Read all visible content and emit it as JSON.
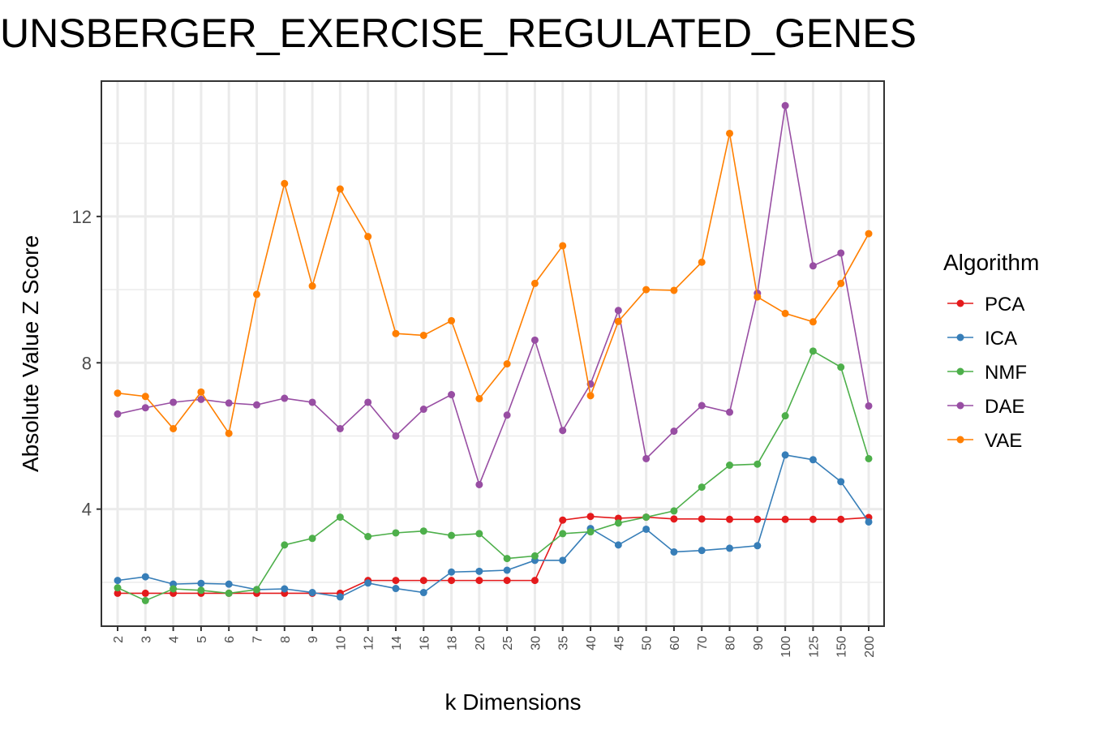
{
  "chart_data": {
    "type": "line",
    "title": "UNSBERGER_EXERCISE_REGULATED_GENES",
    "xlabel": "k Dimensions",
    "ylabel": "Absolute Value Z Score",
    "categories": [
      "2",
      "3",
      "4",
      "5",
      "6",
      "7",
      "8",
      "9",
      "10",
      "12",
      "14",
      "16",
      "18",
      "20",
      "25",
      "30",
      "35",
      "40",
      "45",
      "50",
      "60",
      "70",
      "80",
      "90",
      "100",
      "125",
      "150",
      "200"
    ],
    "ylim": [
      0.8,
      15.7
    ],
    "yticks": [
      4,
      8,
      12
    ],
    "grid": true,
    "legend": {
      "title": "Algorithm",
      "position": "right"
    },
    "series": [
      {
        "name": "PCA",
        "color": "#e41a1c",
        "values": [
          1.7,
          1.7,
          1.7,
          1.7,
          1.7,
          1.7,
          1.7,
          1.7,
          1.7,
          2.05,
          2.05,
          2.05,
          2.05,
          2.05,
          2.05,
          2.05,
          3.7,
          3.8,
          3.75,
          3.78,
          3.73,
          3.73,
          3.72,
          3.72,
          3.72,
          3.72,
          3.72,
          3.77
        ]
      },
      {
        "name": "ICA",
        "color": "#377eb8",
        "values": [
          2.05,
          2.15,
          1.95,
          1.97,
          1.95,
          1.8,
          1.82,
          1.72,
          1.6,
          1.98,
          1.83,
          1.72,
          2.28,
          2.3,
          2.33,
          2.6,
          2.6,
          3.47,
          3.02,
          3.45,
          2.83,
          2.87,
          2.93,
          3.0,
          5.48,
          5.35,
          4.75,
          3.65
        ]
      },
      {
        "name": "NMF",
        "color": "#4daf4a",
        "values": [
          1.85,
          1.5,
          1.82,
          1.78,
          1.7,
          1.8,
          3.02,
          3.2,
          3.78,
          3.25,
          3.35,
          3.4,
          3.28,
          3.33,
          2.65,
          2.72,
          3.33,
          3.38,
          3.62,
          3.78,
          3.95,
          4.6,
          5.2,
          5.23,
          6.55,
          8.32,
          7.88,
          5.38
        ]
      },
      {
        "name": "DAE",
        "color": "#984ea3",
        "values": [
          6.6,
          6.77,
          6.92,
          7.0,
          6.9,
          6.85,
          7.03,
          6.92,
          6.2,
          6.92,
          6.0,
          6.73,
          7.13,
          4.67,
          6.57,
          8.62,
          6.15,
          7.42,
          9.43,
          5.38,
          6.13,
          6.83,
          6.65,
          9.9,
          15.03,
          10.65,
          11.0,
          6.82
        ]
      },
      {
        "name": "VAE",
        "color": "#ff7f00",
        "values": [
          7.17,
          7.08,
          6.2,
          7.2,
          6.07,
          9.87,
          12.9,
          10.1,
          12.75,
          11.45,
          8.8,
          8.75,
          9.15,
          7.02,
          7.97,
          10.17,
          11.2,
          7.1,
          9.13,
          10.0,
          9.98,
          10.75,
          14.27,
          9.8,
          9.35,
          9.12,
          10.17,
          11.53
        ]
      }
    ]
  }
}
